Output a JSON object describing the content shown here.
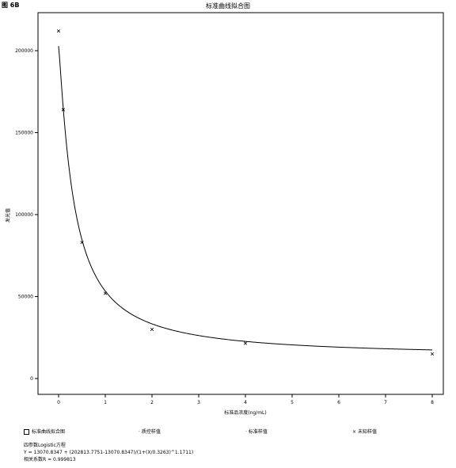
{
  "header": {
    "corner_label": "图 6B"
  },
  "chart_data": {
    "type": "scatter",
    "title": "标准曲线拟合图",
    "xlabel": "标准品浓度(ng/mL)",
    "ylabel": "发光值",
    "xlim": [
      0,
      8
    ],
    "ylim": [
      0,
      220000
    ],
    "x_ticks": [
      0,
      1,
      2,
      3,
      4,
      5,
      6,
      7,
      8
    ],
    "y_ticks": [
      0,
      50000,
      100000,
      150000,
      200000
    ],
    "grid": false,
    "points": [
      {
        "x": 0,
        "y": 212000
      },
      {
        "x": 0.1,
        "y": 164000
      },
      {
        "x": 0.5,
        "y": 83000
      },
      {
        "x": 1,
        "y": 52000
      },
      {
        "x": 2,
        "y": 30000
      },
      {
        "x": 4,
        "y": 21500
      },
      {
        "x": 8,
        "y": 15000
      }
    ],
    "fit_curve": {
      "A": 13070.8347,
      "D": 202813.7751,
      "C": 0.3263,
      "B": 1.1711
    }
  },
  "legend": {
    "items": [
      {
        "label": "标准曲线拟合图",
        "marker": "checkbox"
      },
      {
        "label": "质控样值",
        "marker": "·"
      },
      {
        "label": "标准样值",
        "marker": "·"
      },
      {
        "label": "未知样值",
        "marker": "×"
      }
    ]
  },
  "formula": {
    "name": "四参数Logistic方程",
    "equation": "Y = 13070.8347 + (202813.7751-13070.8347)/(1+(X/0.3263)^1.1711)",
    "r": "相关系数R = 0.999813"
  }
}
